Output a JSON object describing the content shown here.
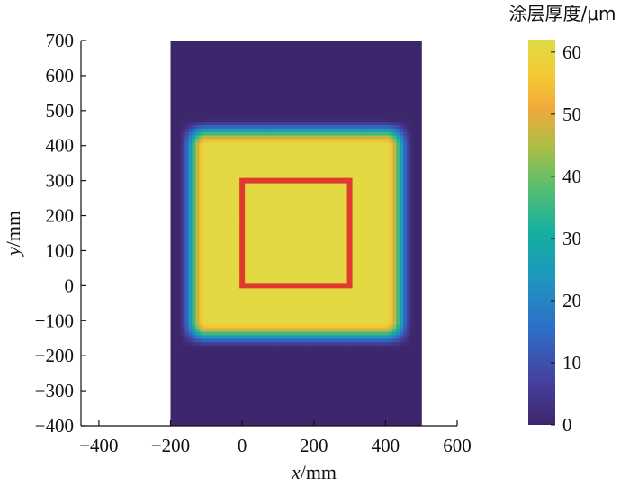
{
  "chart_data": {
    "type": "heatmap",
    "title": "",
    "xlabel": {
      "var": "x",
      "unit": "/mm"
    },
    "ylabel": {
      "var": "y",
      "unit": "/mm"
    },
    "xlim": [
      -450,
      600
    ],
    "ylim": [
      -400,
      700
    ],
    "xticks": [
      -400,
      -200,
      0,
      200,
      400,
      600
    ],
    "yticks": [
      -400,
      -300,
      -200,
      -100,
      0,
      100,
      200,
      300,
      400,
      500,
      600,
      700
    ],
    "xtick_labels": [
      "−400",
      "−200",
      "0",
      "200",
      "400",
      "600"
    ],
    "ytick_labels": [
      "−400",
      "−300",
      "−200",
      "−100",
      "0",
      "100",
      "200",
      "300",
      "400",
      "500",
      "600",
      "700"
    ],
    "field": {
      "description_extent_x": [
        -200,
        500
      ],
      "description_extent_y": [
        -400,
        700
      ],
      "plateau_x": [
        -100,
        400
      ],
      "plateau_y": [
        -100,
        400
      ],
      "edge_fade_mm": 80,
      "max_value": 61,
      "min_value": 0
    },
    "overlay_rectangle": {
      "x": [
        0,
        300
      ],
      "y": [
        0,
        300
      ],
      "color": "#e03a2e"
    },
    "colorbar": {
      "title": "涂层厚度/μm",
      "range": [
        0,
        62
      ],
      "ticks": [
        0,
        10,
        20,
        30,
        40,
        50,
        60
      ],
      "tick_labels": [
        "0",
        "10",
        "20",
        "30",
        "40",
        "50",
        "60"
      ],
      "colormap": "parula"
    }
  }
}
